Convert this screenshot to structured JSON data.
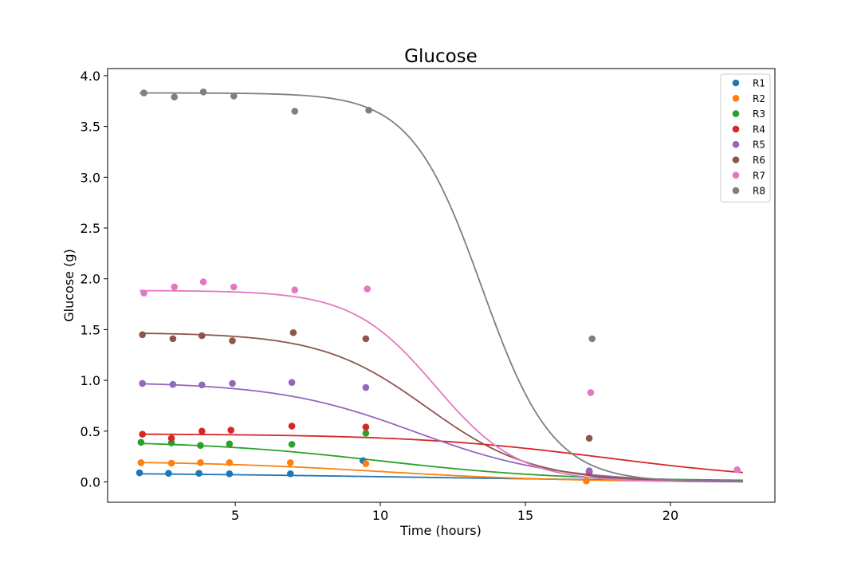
{
  "chart_data": {
    "type": "scatter",
    "title": "Glucose",
    "xlabel": "Time (hours)",
    "ylabel": "Glucose (g)",
    "xlim": [
      0.6,
      23.6
    ],
    "ylim": [
      -0.2,
      4.07
    ],
    "xticks": [
      5,
      10,
      15,
      20
    ],
    "xtick_labels": [
      "5",
      "10",
      "15",
      "20"
    ],
    "yticks": [
      0.0,
      0.5,
      1.0,
      1.5,
      2.0,
      2.5,
      3.0,
      3.5,
      4.0
    ],
    "ytick_labels": [
      "0.0",
      "0.5",
      "1.0",
      "1.5",
      "2.0",
      "2.5",
      "3.0",
      "3.5",
      "4.0"
    ],
    "grid": false,
    "legend_position": "top-right",
    "fit_x_range": [
      1.7,
      22.5
    ],
    "series": [
      {
        "name": "R1",
        "color": "#1f77b4",
        "points": [
          [
            1.7,
            0.09
          ],
          [
            2.7,
            0.085
          ],
          [
            3.75,
            0.085
          ],
          [
            4.8,
            0.08
          ],
          [
            6.9,
            0.08
          ],
          [
            9.4,
            0.21
          ]
        ],
        "fit": {
          "base": 0.0,
          "amp": 0.095,
          "t50": 11.0,
          "k": 0.18
        }
      },
      {
        "name": "R2",
        "color": "#ff7f0e",
        "points": [
          [
            1.75,
            0.19
          ],
          [
            2.8,
            0.185
          ],
          [
            3.8,
            0.19
          ],
          [
            4.8,
            0.19
          ],
          [
            6.9,
            0.19
          ],
          [
            9.5,
            0.18
          ],
          [
            17.1,
            0.01
          ]
        ],
        "fit": {
          "base": 0.0,
          "amp": 0.205,
          "t50": 10.0,
          "k": 0.32
        }
      },
      {
        "name": "R3",
        "color": "#2ca02c",
        "points": [
          [
            1.75,
            0.39
          ],
          [
            2.8,
            0.385
          ],
          [
            3.8,
            0.36
          ],
          [
            4.8,
            0.375
          ],
          [
            6.95,
            0.37
          ],
          [
            9.5,
            0.48
          ],
          [
            17.2,
            0.1
          ]
        ],
        "fit": {
          "base": 0.01,
          "amp": 0.395,
          "t50": 10.0,
          "k": 0.32
        }
      },
      {
        "name": "R4",
        "color": "#d62728",
        "points": [
          [
            1.8,
            0.47
          ],
          [
            2.8,
            0.43
          ],
          [
            3.85,
            0.5
          ],
          [
            4.85,
            0.51
          ],
          [
            6.95,
            0.55
          ],
          [
            9.5,
            0.54
          ],
          [
            17.2,
            0.1
          ]
        ],
        "fit": {
          "base": 0.0,
          "amp": 0.474,
          "t50": 17.8,
          "k": 0.3
        }
      },
      {
        "name": "R5",
        "color": "#9467bd",
        "points": [
          [
            1.8,
            0.97
          ],
          [
            2.85,
            0.96
          ],
          [
            3.85,
            0.955
          ],
          [
            4.9,
            0.97
          ],
          [
            6.95,
            0.98
          ],
          [
            9.5,
            0.93
          ],
          [
            17.2,
            0.11
          ]
        ],
        "fit": {
          "base": 0.0,
          "amp": 0.985,
          "t50": 11.2,
          "k": 0.42
        }
      },
      {
        "name": "R6",
        "color": "#8c564b",
        "points": [
          [
            1.8,
            1.45
          ],
          [
            2.85,
            1.41
          ],
          [
            3.85,
            1.44
          ],
          [
            4.9,
            1.39
          ],
          [
            7.0,
            1.47
          ],
          [
            9.5,
            1.41
          ],
          [
            17.2,
            0.43
          ]
        ],
        "fit": {
          "base": 0.0,
          "amp": 1.47,
          "t50": 11.6,
          "k": 0.55
        }
      },
      {
        "name": "R7",
        "color": "#e377c2",
        "points": [
          [
            1.85,
            1.86
          ],
          [
            2.9,
            1.92
          ],
          [
            3.9,
            1.97
          ],
          [
            4.95,
            1.92
          ],
          [
            7.05,
            1.89
          ],
          [
            9.55,
            1.9
          ],
          [
            17.25,
            0.88
          ],
          [
            22.3,
            0.12
          ]
        ],
        "fit": {
          "base": 0.0,
          "amp": 1.885,
          "t50": 11.9,
          "k": 0.7
        }
      },
      {
        "name": "R8",
        "color": "#7f7f7f",
        "points": [
          [
            1.85,
            3.83
          ],
          [
            2.9,
            3.79
          ],
          [
            3.9,
            3.84
          ],
          [
            4.95,
            3.8
          ],
          [
            7.05,
            3.65
          ],
          [
            9.6,
            3.66
          ],
          [
            17.3,
            1.41
          ]
        ],
        "fit": {
          "base": 0.0,
          "amp": 3.83,
          "t50": 13.5,
          "k": 0.82
        }
      }
    ]
  }
}
